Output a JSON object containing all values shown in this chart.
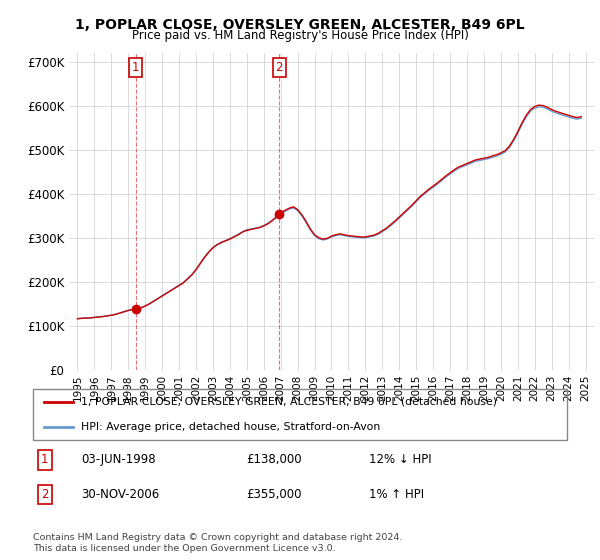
{
  "title": "1, POPLAR CLOSE, OVERSLEY GREEN, ALCESTER, B49 6PL",
  "subtitle": "Price paid vs. HM Land Registry's House Price Index (HPI)",
  "ylim": [
    0,
    720000
  ],
  "yticks": [
    0,
    100000,
    200000,
    300000,
    400000,
    500000,
    600000,
    700000
  ],
  "ytick_labels": [
    "£0",
    "£100K",
    "£200K",
    "£300K",
    "£400K",
    "£500K",
    "£600K",
    "£700K"
  ],
  "sale1_date": 1998.43,
  "sale1_price": 138000,
  "sale2_date": 2006.92,
  "sale2_price": 355000,
  "line1_color": "#cc0000",
  "line2_color": "#6699cc",
  "marker_color": "#cc0000",
  "grid_color": "#cccccc",
  "legend1_text": "1, POPLAR CLOSE, OVERSLEY GREEN, ALCESTER, B49 6PL (detached house)",
  "legend2_text": "HPI: Average price, detached house, Stratford-on-Avon",
  "footer": "Contains HM Land Registry data © Crown copyright and database right 2024.\nThis data is licensed under the Open Government Licence v3.0.",
  "sale1_box_label": "1",
  "sale2_box_label": "2",
  "sale1_date_str": "03-JUN-1998",
  "sale2_date_str": "30-NOV-2006",
  "sale1_price_str": "£138,000",
  "sale2_price_str": "£355,000",
  "sale1_hpi_str": "12% ↓ HPI",
  "sale2_hpi_str": "1% ↑ HPI",
  "xlim_start": 1994.5,
  "xlim_end": 2025.5
}
